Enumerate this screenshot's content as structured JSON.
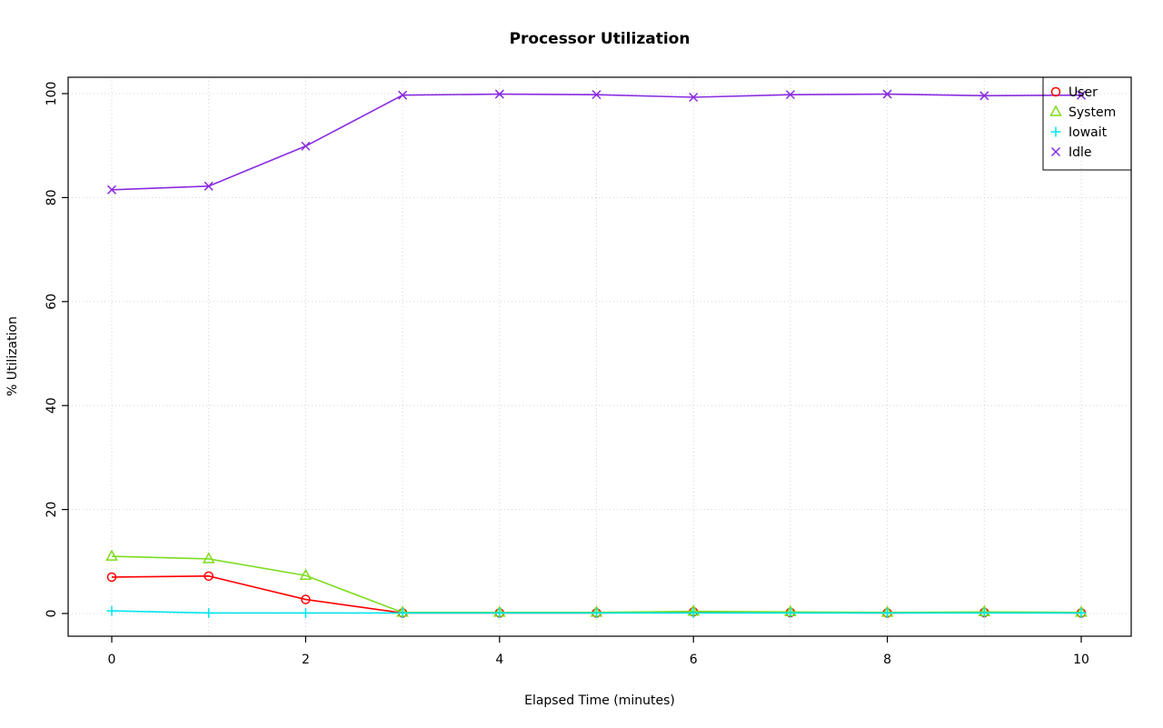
{
  "chart_data": {
    "type": "line",
    "title": "Processor Utilization",
    "xlabel": "Elapsed Time (minutes)",
    "ylabel": "% Utilization",
    "x": [
      0,
      1,
      2,
      3,
      4,
      5,
      6,
      7,
      8,
      9,
      10
    ],
    "xlim": [
      0,
      10
    ],
    "ylim": [
      0,
      100
    ],
    "x_ticks": [
      0,
      2,
      4,
      6,
      8,
      10
    ],
    "y_ticks": [
      0,
      20,
      40,
      60,
      80,
      100
    ],
    "grid": {
      "x_lines": [
        0,
        1,
        2,
        3,
        4,
        5,
        6,
        7,
        8,
        9,
        10
      ],
      "y_lines": [
        0,
        20,
        40,
        60,
        80,
        100
      ],
      "color": "#d4d4d4",
      "style": "dotted"
    },
    "legend_position": "top-right",
    "series": [
      {
        "name": "User",
        "color": "#ff0000",
        "marker": "circle",
        "values": [
          7.0,
          7.2,
          2.7,
          0.1,
          0.1,
          0.1,
          0.3,
          0.2,
          0.1,
          0.2,
          0.1
        ]
      },
      {
        "name": "System",
        "color": "#7cdc1e",
        "marker": "triangle",
        "values": [
          11.0,
          10.5,
          7.3,
          0.2,
          0.2,
          0.2,
          0.4,
          0.3,
          0.2,
          0.3,
          0.2
        ]
      },
      {
        "name": "Iowait",
        "color": "#00e5ee",
        "marker": "plus",
        "values": [
          0.5,
          0.1,
          0.1,
          0.1,
          0.1,
          0.1,
          0.1,
          0.1,
          0.1,
          0.1,
          0.1
        ]
      },
      {
        "name": "Idle",
        "color": "#8a2be2",
        "marker": "x",
        "values": [
          81.5,
          82.2,
          89.9,
          99.7,
          99.9,
          99.8,
          99.3,
          99.8,
          99.9,
          99.6,
          99.7
        ]
      }
    ]
  }
}
